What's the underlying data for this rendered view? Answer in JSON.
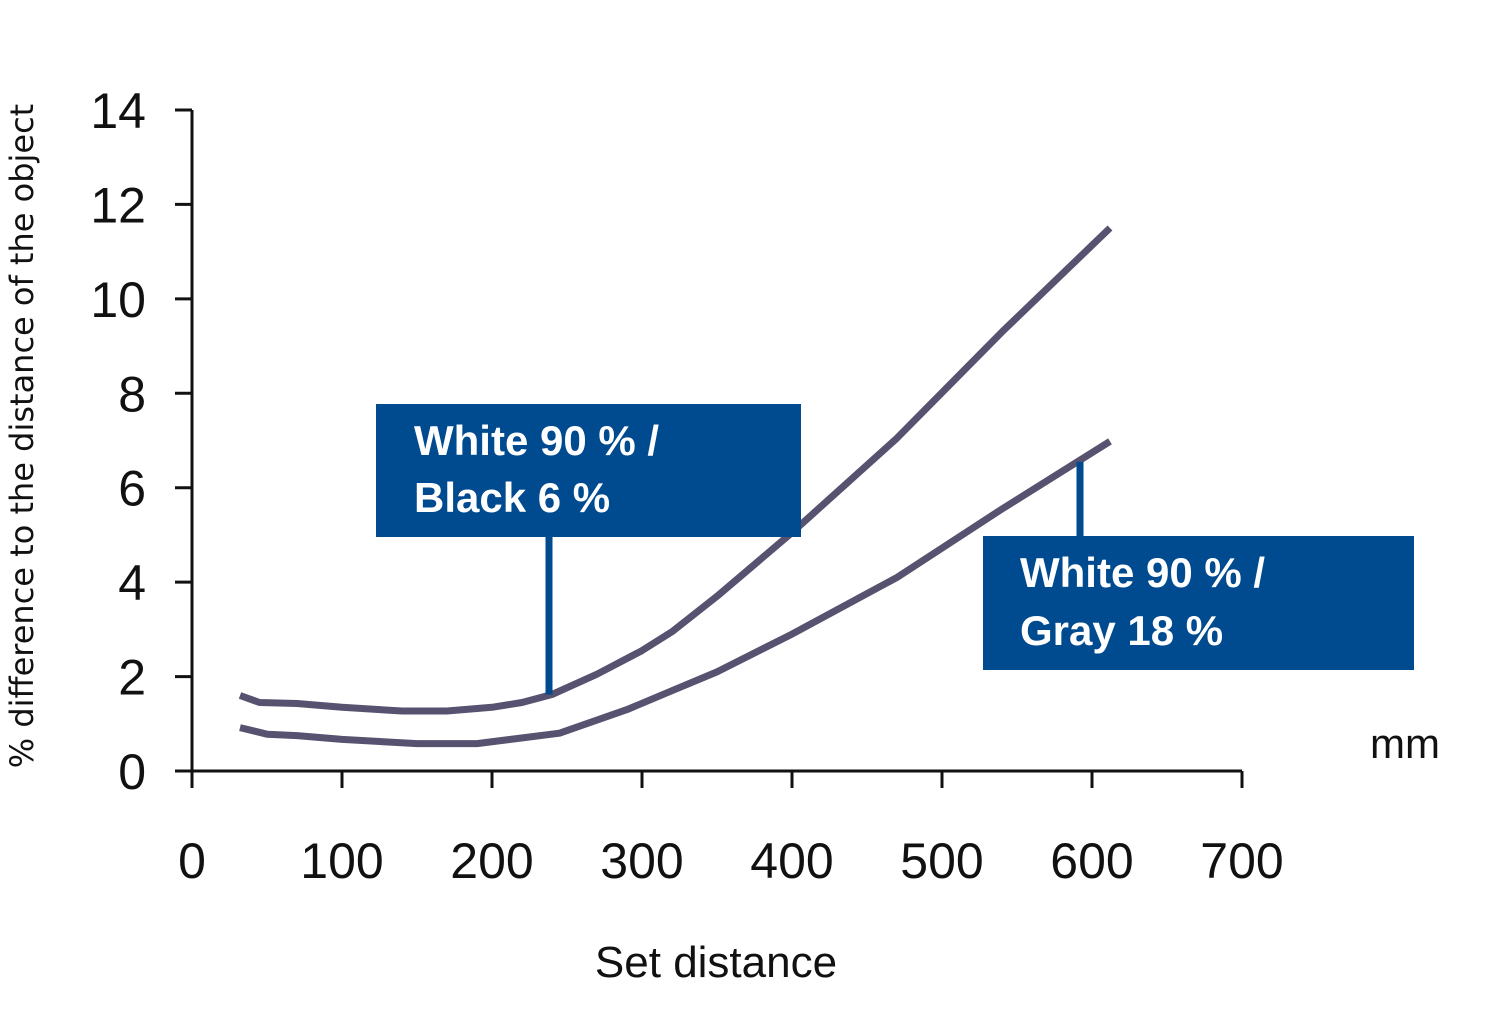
{
  "chart_data": {
    "type": "line",
    "xlabel": "Set distance",
    "ylabel": "% difference to the distance of the object",
    "x_unit": "mm",
    "xlim": [
      0,
      700
    ],
    "ylim": [
      0,
      14
    ],
    "x_ticks": [
      0,
      100,
      200,
      300,
      400,
      500,
      600,
      700
    ],
    "y_ticks": [
      0,
      2,
      4,
      6,
      8,
      10,
      12,
      14
    ],
    "grid": false,
    "series": [
      {
        "name": "White 90 % / Black 6 %",
        "x": [
          32,
          45,
          70,
          100,
          140,
          170,
          200,
          220,
          240,
          270,
          300,
          320,
          350,
          400,
          470,
          540,
          612
        ],
        "y": [
          1.6,
          1.45,
          1.43,
          1.35,
          1.27,
          1.27,
          1.35,
          1.45,
          1.62,
          2.05,
          2.55,
          2.95,
          3.7,
          5.05,
          7.05,
          9.3,
          11.5
        ]
      },
      {
        "name": "White 90 % / Gray 18 %",
        "x": [
          32,
          50,
          70,
          100,
          150,
          190,
          215,
          245,
          290,
          320,
          350,
          400,
          470,
          540,
          612
        ],
        "y": [
          0.92,
          0.78,
          0.75,
          0.67,
          0.58,
          0.58,
          0.68,
          0.8,
          1.3,
          1.7,
          2.1,
          2.9,
          4.1,
          5.55,
          6.98
        ]
      }
    ],
    "annotations": [
      {
        "lines": [
          "White 90 % /",
          "Black 6 %"
        ],
        "box_color": "#004a8f",
        "text_color": "#ffffff",
        "points_to": {
          "series": 0,
          "x": 238,
          "y": 1.62
        }
      },
      {
        "lines": [
          "White 90 % /",
          "Gray 18 %"
        ],
        "box_color": "#004a8f",
        "text_color": "#ffffff",
        "points_to": {
          "series": 1,
          "x": 590,
          "y": 6.55
        }
      }
    ],
    "line_color": "#56526f"
  }
}
